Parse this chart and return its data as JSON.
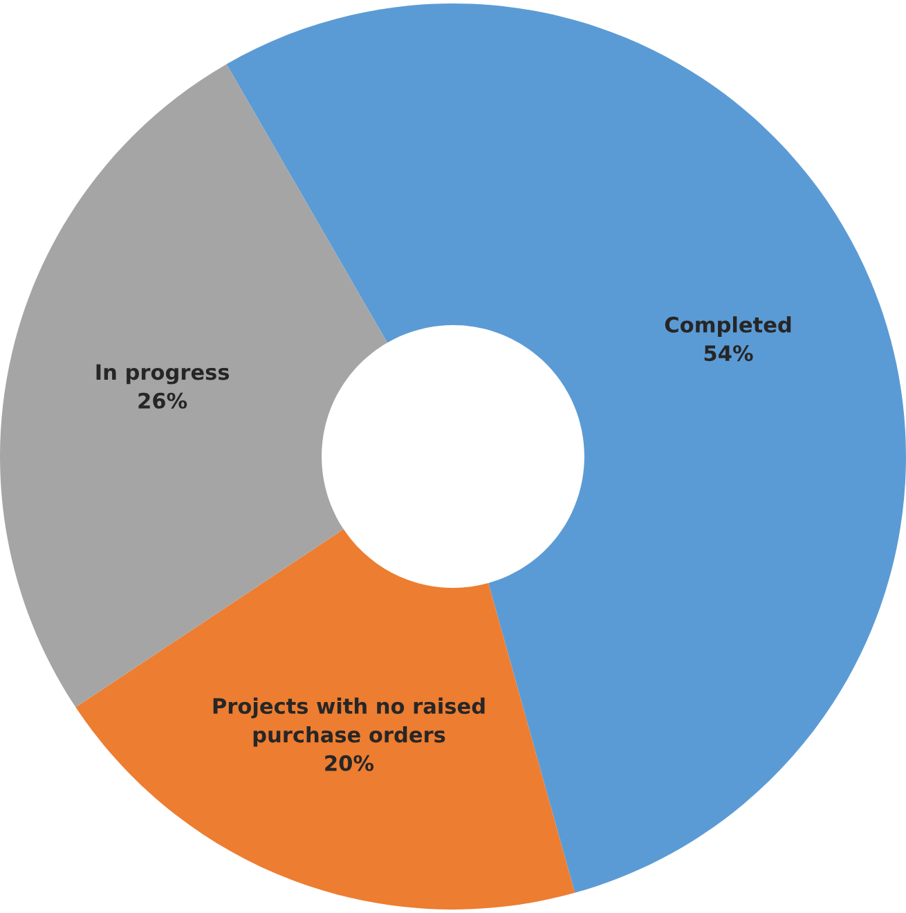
{
  "chart_data": {
    "type": "donut",
    "categories": [
      "Completed",
      "Projects with no raised purchase orders",
      "In progress"
    ],
    "values": [
      54,
      20,
      26
    ],
    "value_labels": [
      "54%",
      "20%",
      "26%"
    ],
    "colors": [
      "#5b9bd5",
      "#ed7d31",
      "#a5a5a5"
    ],
    "legend": false
  }
}
